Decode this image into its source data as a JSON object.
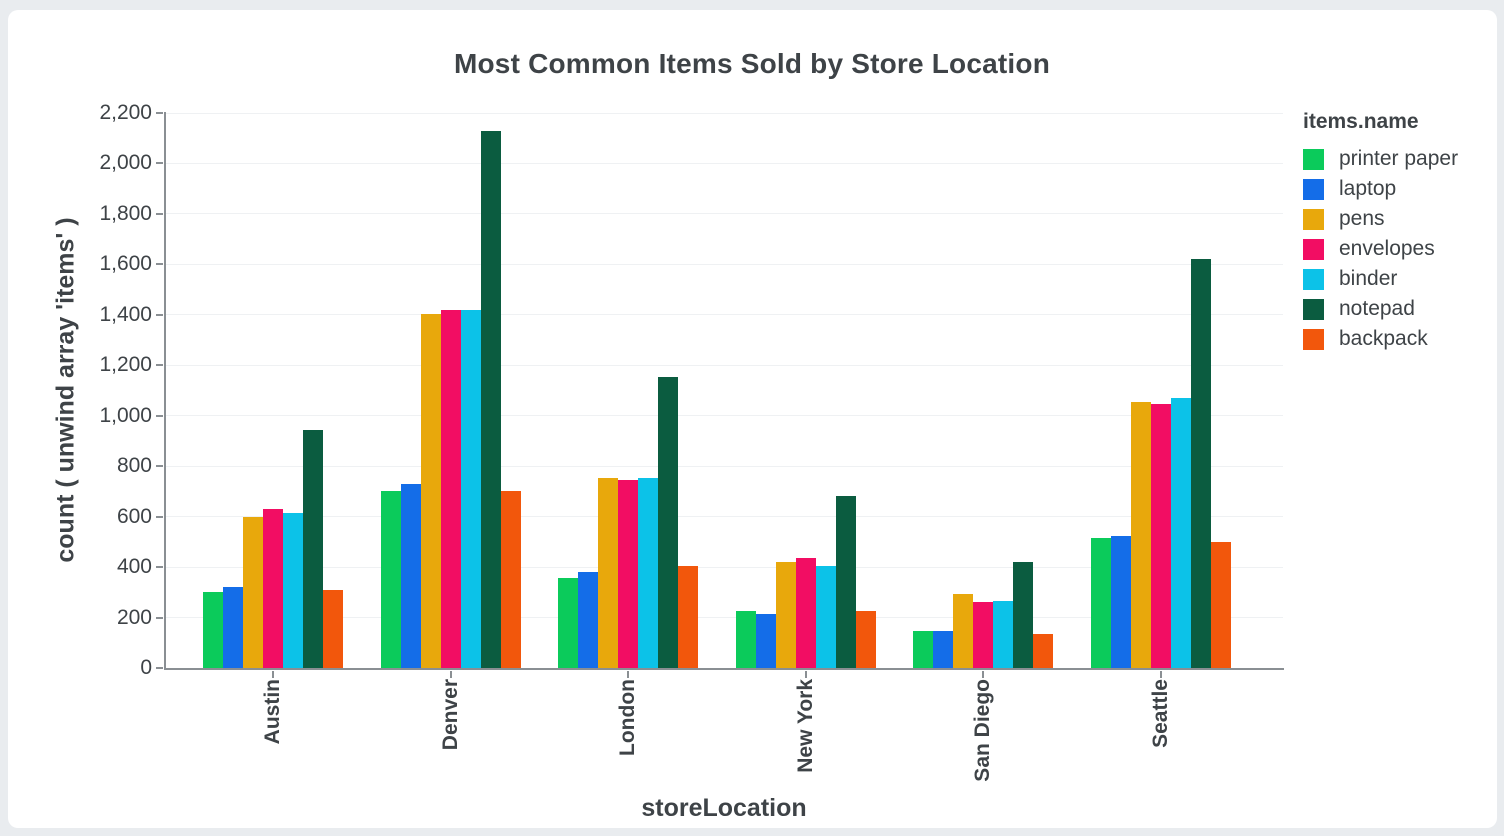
{
  "page": {
    "background_color": "#e9ecef",
    "card_color": "#ffffff",
    "text_color": "#3e4347",
    "axis_color": "#8a8f93",
    "gridline_color": "#eff1f3"
  },
  "chart_data": {
    "type": "bar",
    "title": "Most Common Items Sold by Store Location",
    "xlabel": "storeLocation",
    "ylabel": "count ( unwind array 'items' )",
    "legend_title": "items.name",
    "legend_position": "right",
    "grid": true,
    "ylim": [
      0,
      2200
    ],
    "ytick_step": 200,
    "categories": [
      "Austin",
      "Denver",
      "London",
      "New York",
      "San Diego",
      "Seattle"
    ],
    "series": [
      {
        "name": "printer paper",
        "color": "#0bcb5b",
        "values": [
          300,
          700,
          355,
          225,
          145,
          515
        ]
      },
      {
        "name": "laptop",
        "color": "#146de8",
        "values": [
          320,
          730,
          380,
          215,
          145,
          525
        ]
      },
      {
        "name": "pens",
        "color": "#e8a80c",
        "values": [
          600,
          1405,
          755,
          420,
          295,
          1055
        ]
      },
      {
        "name": "envelopes",
        "color": "#f20d63",
        "values": [
          630,
          1420,
          745,
          435,
          260,
          1045
        ]
      },
      {
        "name": "binder",
        "color": "#0cc2e8",
        "values": [
          615,
          1420,
          755,
          405,
          265,
          1070
        ]
      },
      {
        "name": "notepad",
        "color": "#0b5c40",
        "values": [
          945,
          2130,
          1155,
          680,
          420,
          1620
        ]
      },
      {
        "name": "backpack",
        "color": "#f2570c",
        "values": [
          310,
          700,
          405,
          225,
          135,
          500
        ]
      }
    ]
  }
}
